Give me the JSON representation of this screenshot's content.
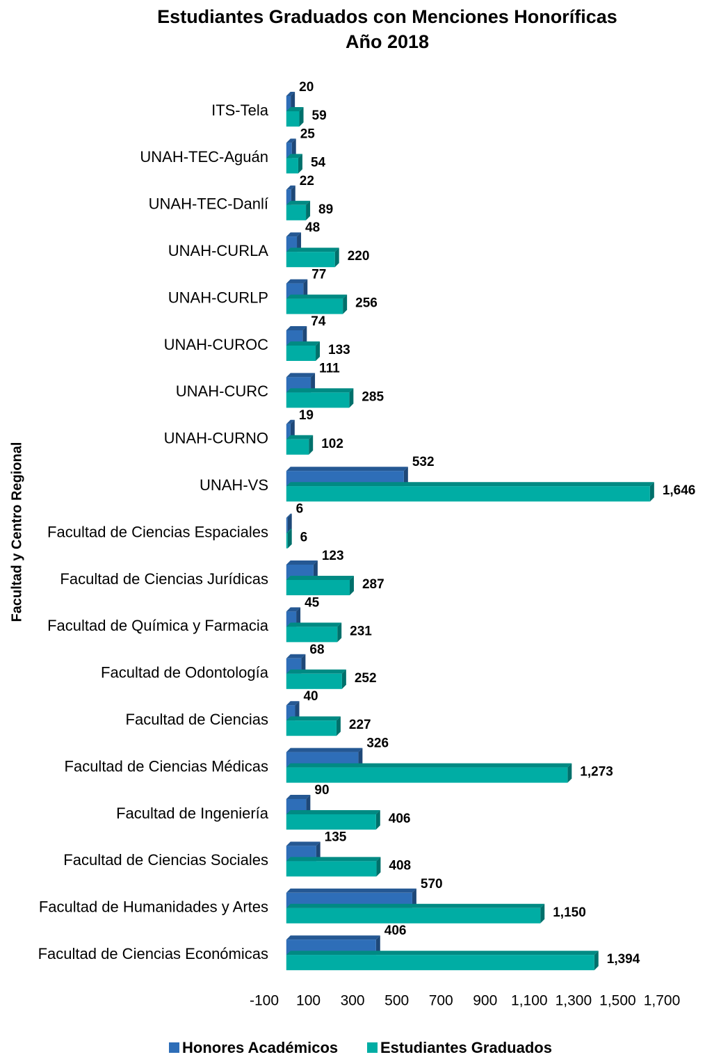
{
  "chart_data": {
    "type": "bar",
    "orientation": "horizontal",
    "title": "Estudiantes Graduados con Menciones Honoríficas",
    "subtitle": "Año 2018",
    "y_label": "Facultad y Centro Regional",
    "categories": [
      "ITS-Tela",
      "UNAH-TEC-Aguán",
      "UNAH-TEC-Danlí",
      "UNAH-CURLA",
      "UNAH-CURLP",
      "UNAH-CUROC",
      "UNAH-CURC",
      "UNAH-CURNO",
      "UNAH-VS",
      "Facultad de Ciencias Espaciales",
      "Facultad de Ciencias Jurídicas",
      "Facultad de Química y Farmacia",
      "Facultad de Odontología",
      "Facultad de Ciencias",
      "Facultad de Ciencias Médicas",
      "Facultad de Ingeniería",
      "Facultad de Ciencias Sociales",
      "Facultad de Humanidades y Artes",
      "Facultad de Ciencias Económicas"
    ],
    "series": [
      {
        "name": "Honores Académicos",
        "color": "#2e6eb8",
        "values": [
          20,
          25,
          22,
          48,
          77,
          74,
          111,
          19,
          532,
          6,
          123,
          45,
          68,
          40,
          326,
          90,
          135,
          570,
          406
        ]
      },
      {
        "name": "Estudiantes Graduados",
        "color": "#00ada4",
        "values": [
          59,
          54,
          89,
          220,
          256,
          133,
          285,
          102,
          1646,
          6,
          287,
          231,
          252,
          227,
          1273,
          406,
          408,
          1150,
          1394
        ],
        "value_labels": [
          "59",
          "54",
          "89",
          "220",
          "256",
          "133",
          "285",
          "102",
          "1,646",
          "6",
          "287",
          "231",
          "252",
          "227",
          "1,273",
          "406",
          "408",
          "1,150",
          "1,394"
        ]
      }
    ],
    "xlim": [
      -100,
      1700
    ],
    "xticks": [
      -100,
      100,
      300,
      500,
      700,
      900,
      {
        "value": 1100,
        "label": "1,100"
      },
      {
        "value": 1300,
        "label": "1,300"
      },
      {
        "value": 1500,
        "label": "1,500"
      },
      {
        "value": 1700,
        "label": "1,700"
      }
    ],
    "legend": "bottom"
  }
}
